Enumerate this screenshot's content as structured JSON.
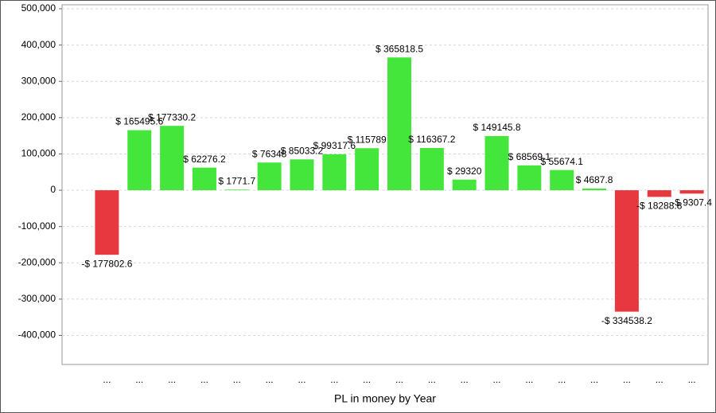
{
  "chart_data": {
    "type": "bar",
    "x_label": "PL in money by Year",
    "categories": [
      "...",
      "...",
      "...",
      "...",
      "...",
      "...",
      "...",
      "...",
      "...",
      "...",
      "...",
      "...",
      "...",
      "...",
      "...",
      "...",
      "...",
      "...",
      "..."
    ],
    "values": [
      -177802.6,
      165495.6,
      177330.2,
      62276.2,
      1771.7,
      76348,
      85033.2,
      99317.6,
      115789,
      365818.5,
      116367.2,
      29320,
      149145.8,
      68569.1,
      55674.1,
      4687.8,
      -334538.2,
      -18288.8,
      -9307.4
    ],
    "value_labels": [
      "-$ 177802.6",
      "$ 165495.6",
      "$ 177330.2",
      "$ 62276.2",
      "$ 1771.7",
      "$ 76348",
      "$ 85033.2",
      "$ 99317.6",
      "$ 115789",
      "$ 365818.5",
      "$ 116367.2",
      "$ 29320",
      "$ 149145.8",
      "$ 68569.1",
      "$ 55674.1",
      "$ 4687.8",
      "-$ 334538.2",
      "-$ 18288.8",
      "-$ 9307.4"
    ],
    "positive_color": "#44e63c",
    "negative_color": "#e8383f",
    "ylim": [
      -480000,
      500000
    ],
    "yticks": [
      {
        "value": 500000,
        "label": "500,000"
      },
      {
        "value": 400000,
        "label": "400,000"
      },
      {
        "value": 300000,
        "label": "300,000"
      },
      {
        "value": 200000,
        "label": "200,000"
      },
      {
        "value": 100000,
        "label": "100,000"
      },
      0,
      {
        "value": -100000,
        "label": "-100,000"
      },
      {
        "value": -200000,
        "label": "-200,000"
      },
      {
        "value": -300000,
        "label": "-300,000"
      },
      {
        "value": -400000,
        "label": "-400,000"
      }
    ],
    "grid": true
  }
}
